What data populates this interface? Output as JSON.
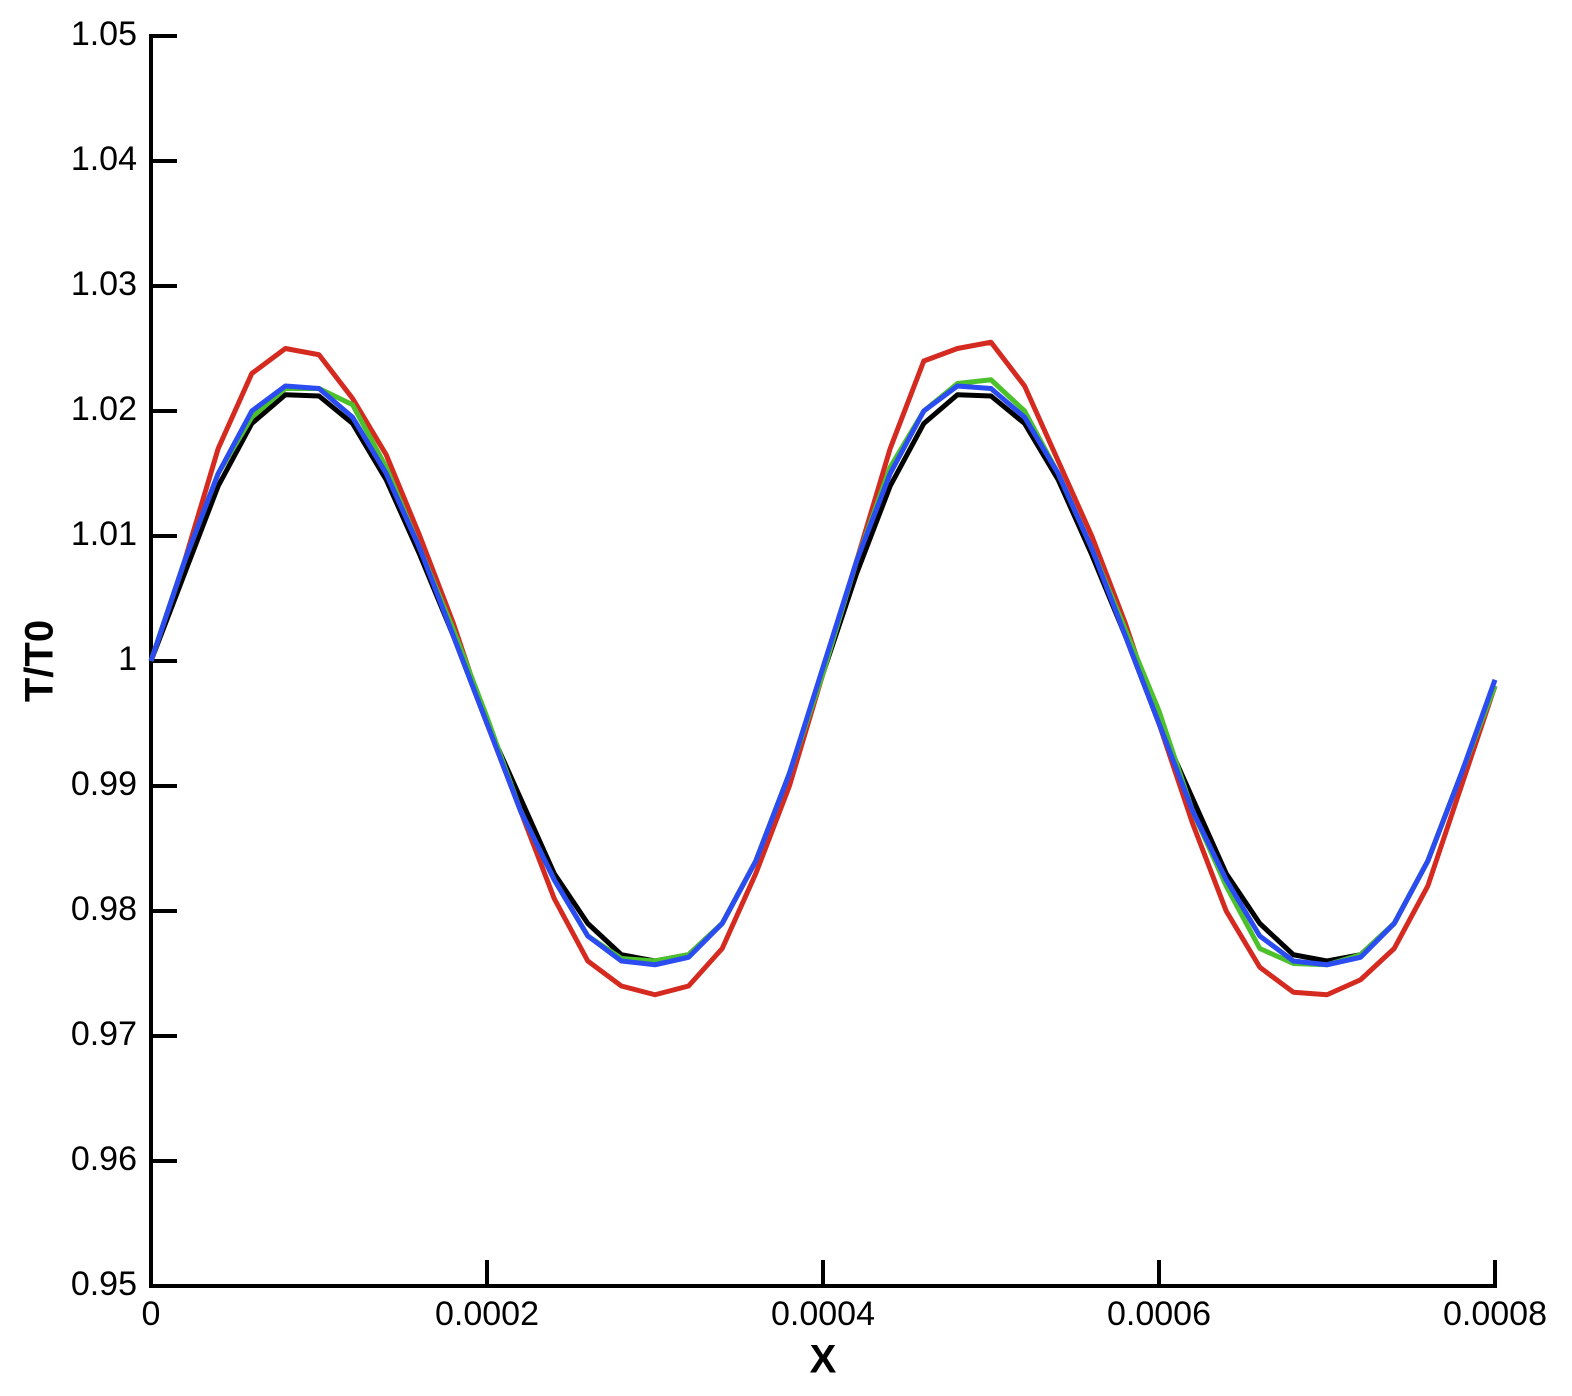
{
  "chart_data": {
    "type": "line",
    "xlabel": "X",
    "ylabel": "T/T0",
    "x": [
      0,
      2e-05,
      4e-05,
      6e-05,
      8e-05,
      0.0001,
      0.00012,
      0.00014,
      0.00016,
      0.00018,
      0.0002,
      0.00022,
      0.00024,
      0.00026,
      0.00028,
      0.0003,
      0.00032,
      0.00034,
      0.00036,
      0.00038,
      0.0004,
      0.00042,
      0.00044,
      0.00046,
      0.00048,
      0.0005,
      0.00052,
      0.00054,
      0.00056,
      0.00058,
      0.0006,
      0.00062,
      0.00064,
      0.00066,
      0.00068,
      0.0007,
      0.00072,
      0.00074,
      0.00076,
      0.00078,
      0.0008
    ],
    "series": [
      {
        "color": "#000000",
        "values": [
          1.0,
          1.007,
          1.014,
          1.019,
          1.0213,
          1.0212,
          1.019,
          1.0145,
          1.0085,
          1.002,
          0.995,
          0.989,
          0.983,
          0.979,
          0.9765,
          0.976,
          0.9765,
          0.979,
          0.984,
          0.991,
          0.999,
          1.007,
          1.014,
          1.019,
          1.0213,
          1.0212,
          1.019,
          1.0145,
          1.0085,
          1.002,
          0.995,
          0.989,
          0.983,
          0.979,
          0.9765,
          0.976,
          0.9765,
          0.979,
          0.984,
          0.991,
          0.998
        ]
      },
      {
        "color": "#d42a20",
        "values": [
          1.0,
          1.008,
          1.017,
          1.023,
          1.025,
          1.0245,
          1.021,
          1.0165,
          1.01,
          1.003,
          0.995,
          0.988,
          0.981,
          0.976,
          0.974,
          0.9733,
          0.974,
          0.977,
          0.983,
          0.99,
          0.999,
          1.008,
          1.017,
          1.024,
          1.025,
          1.0255,
          1.022,
          1.016,
          1.01,
          1.003,
          0.995,
          0.987,
          0.98,
          0.9755,
          0.9735,
          0.9733,
          0.9745,
          0.977,
          0.982,
          0.99,
          0.998
        ]
      },
      {
        "color": "#4cc12c",
        "values": [
          1.0,
          1.008,
          1.015,
          1.0195,
          1.0218,
          1.0218,
          1.0205,
          1.0155,
          1.009,
          1.0025,
          0.9955,
          0.988,
          0.9825,
          0.978,
          0.9762,
          0.976,
          0.9765,
          0.979,
          0.984,
          0.991,
          0.999,
          1.008,
          1.0155,
          1.02,
          1.0222,
          1.0225,
          1.02,
          1.015,
          1.009,
          1.0025,
          0.996,
          0.988,
          0.982,
          0.977,
          0.9758,
          0.9757,
          0.9765,
          0.979,
          0.984,
          0.991,
          0.998
        ]
      },
      {
        "color": "#2a4cf0",
        "values": [
          1.0,
          1.008,
          1.015,
          1.02,
          1.022,
          1.0218,
          1.0195,
          1.015,
          1.009,
          1.002,
          0.995,
          0.988,
          0.9825,
          0.978,
          0.976,
          0.9757,
          0.9763,
          0.979,
          0.984,
          0.991,
          0.9995,
          1.008,
          1.015,
          1.02,
          1.022,
          1.0218,
          1.0195,
          1.015,
          1.009,
          1.002,
          0.995,
          0.988,
          0.9825,
          0.978,
          0.976,
          0.9757,
          0.9763,
          0.979,
          0.984,
          0.991,
          0.9985
        ]
      }
    ],
    "xlim": [
      0,
      0.0008
    ],
    "xticks": [
      0,
      0.0002,
      0.0004,
      0.0006,
      0.0008
    ],
    "ylim": [
      0.95,
      1.05
    ],
    "yticks": [
      0.95,
      0.96,
      0.97,
      0.98,
      0.99,
      1,
      1.01,
      1.02,
      1.03,
      1.04,
      1.05
    ],
    "grid": false
  }
}
